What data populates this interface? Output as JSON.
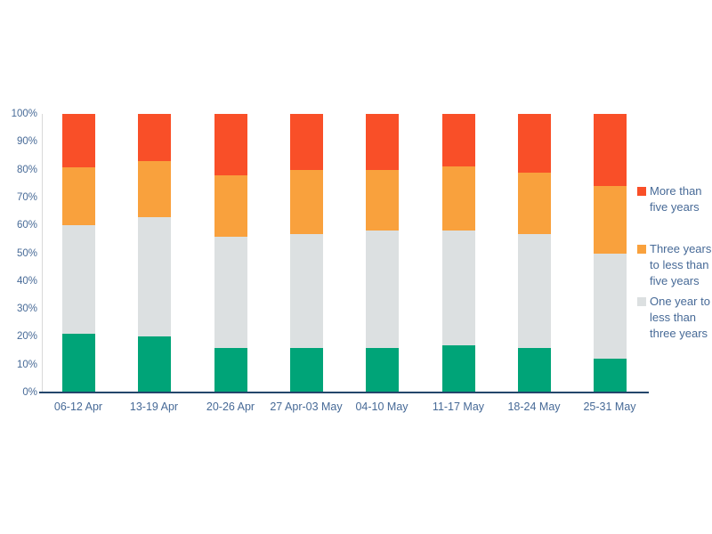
{
  "chart_data": {
    "type": "bar",
    "subtype": "stacked-100-percent-column",
    "title": "",
    "xlabel": "",
    "ylabel": "",
    "ylim": [
      0,
      100
    ],
    "grid": false,
    "legend_position": "right",
    "categories": [
      "06-12 Apr",
      "13-19 Apr",
      "20-26 Apr",
      "27 Apr-03 May",
      "04-10 May",
      "11-17 May",
      "18-24 May",
      "25-31 May"
    ],
    "yticks": [
      "0%",
      "10%",
      "20%",
      "30%",
      "40%",
      "50%",
      "60%",
      "70%",
      "80%",
      "90%",
      "100%"
    ],
    "series": [
      {
        "name": "",
        "color": "#00a478",
        "values": [
          21,
          20,
          16,
          16,
          16,
          17,
          16,
          12
        ]
      },
      {
        "name": "One year to less than three years",
        "color": "#dce0e1",
        "values": [
          39,
          43,
          40,
          41,
          42,
          41,
          41,
          38
        ]
      },
      {
        "name": "Three years to less than five years",
        "color": "#f9a13d",
        "values": [
          21,
          20,
          22,
          23,
          22,
          23,
          22,
          24
        ]
      },
      {
        "name": "More than five years",
        "color": "#f94f28",
        "values": [
          19,
          17,
          22,
          20,
          20,
          19,
          21,
          26
        ]
      }
    ],
    "legend": [
      {
        "label": "More than five years",
        "color": "#f94f28"
      },
      {
        "label": "Three years to less than five years",
        "color": "#f9a13d"
      },
      {
        "label": "One year to less than three years",
        "color": "#dce0e1"
      }
    ]
  },
  "colors": {
    "axis_line": "#24466b",
    "y_axis_line": "#d9d9d9",
    "tick_label": "#476a97",
    "background": "#ffffff"
  }
}
